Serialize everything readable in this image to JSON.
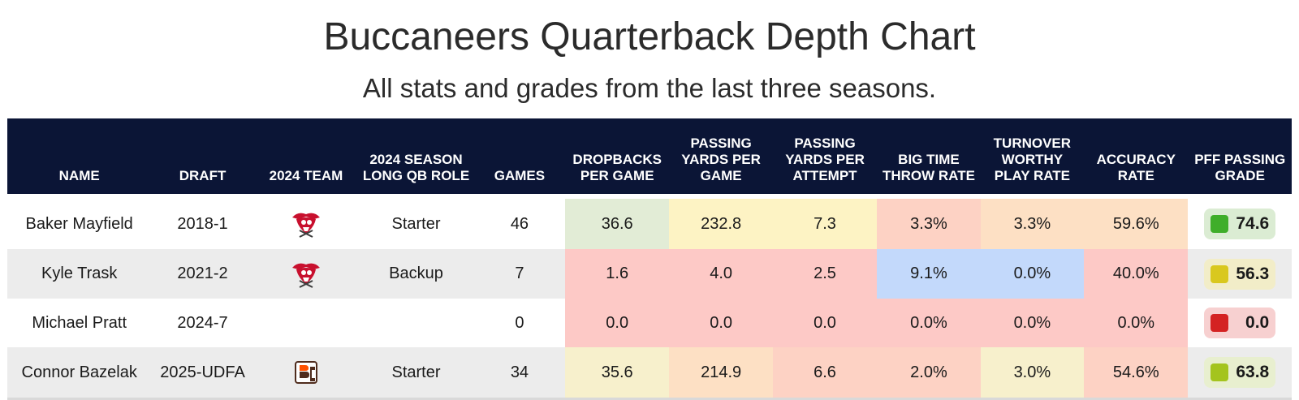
{
  "title": "Buccaneers Quarterback Depth Chart",
  "subtitle": "All stats and grades from the last three seasons.",
  "chart_data": {
    "type": "table",
    "columns": [
      "NAME",
      "DRAFT",
      "2024 TEAM",
      "2024 SEASON LONG QB ROLE",
      "GAMES",
      "DROPBACKS PER GAME",
      "PASSING YARDS PER GAME",
      "PASSING YARDS PER ATTEMPT",
      "BIG TIME THROW RATE",
      "TURNOVER WORTHY PLAY RATE",
      "ACCURACY RATE",
      "PFF PASSING GRADE"
    ],
    "rows": [
      {
        "name": "Baker Mayfield",
        "draft": "2018-1",
        "team_logo": "buccaneers-logo",
        "role": "Starter",
        "games": "46",
        "stats": [
          "36.6",
          "232.8",
          "7.3",
          "3.3%",
          "3.3%",
          "59.6%"
        ],
        "stat_colors": [
          "#e2ecd6",
          "#fdf3c4",
          "#fdf3c4",
          "#fdd2c4",
          "#fde0c4",
          "#fde0c4"
        ],
        "grade": "74.6",
        "grade_color": "#3fae2a",
        "grade_bg": "#dbecd3"
      },
      {
        "name": "Kyle Trask",
        "draft": "2021-2",
        "team_logo": "buccaneers-logo",
        "role": "Backup",
        "games": "7",
        "stats": [
          "1.6",
          "4.0",
          "2.5",
          "9.1%",
          "0.0%",
          "40.0%"
        ],
        "stat_colors": [
          "#fdc9c6",
          "#fdc9c6",
          "#fdc9c6",
          "#c3d9fb",
          "#c3d9fb",
          "#fdc9c6"
        ],
        "grade": "56.3",
        "grade_color": "#d9c81e",
        "grade_bg": "#f2edc8"
      },
      {
        "name": "Michael Pratt",
        "draft": "2024-7",
        "team_logo": "",
        "role": "",
        "games": "0",
        "stats": [
          "0.0",
          "0.0",
          "0.0",
          "0.0%",
          "0.0%",
          "0.0%"
        ],
        "stat_colors": [
          "#fdc9c6",
          "#fdc9c6",
          "#fdc9c6",
          "#fdc9c6",
          "#fdc9c6",
          "#fdc9c6"
        ],
        "grade": "0.0",
        "grade_color": "#d42222",
        "grade_bg": "#f7d0d0"
      },
      {
        "name": "Connor Bazelak",
        "draft": "2025-UDFA",
        "team_logo": "bgsu-logo",
        "role": "Starter",
        "games": "34",
        "stats": [
          "35.6",
          "214.9",
          "6.6",
          "2.0%",
          "3.0%",
          "54.6%"
        ],
        "stat_colors": [
          "#f7f0cc",
          "#fde0c4",
          "#fdd2c4",
          "#fdd2c4",
          "#f7f0cc",
          "#fdd2c4"
        ],
        "grade": "63.8",
        "grade_color": "#a4c41e",
        "grade_bg": "#e8efcf"
      }
    ]
  }
}
